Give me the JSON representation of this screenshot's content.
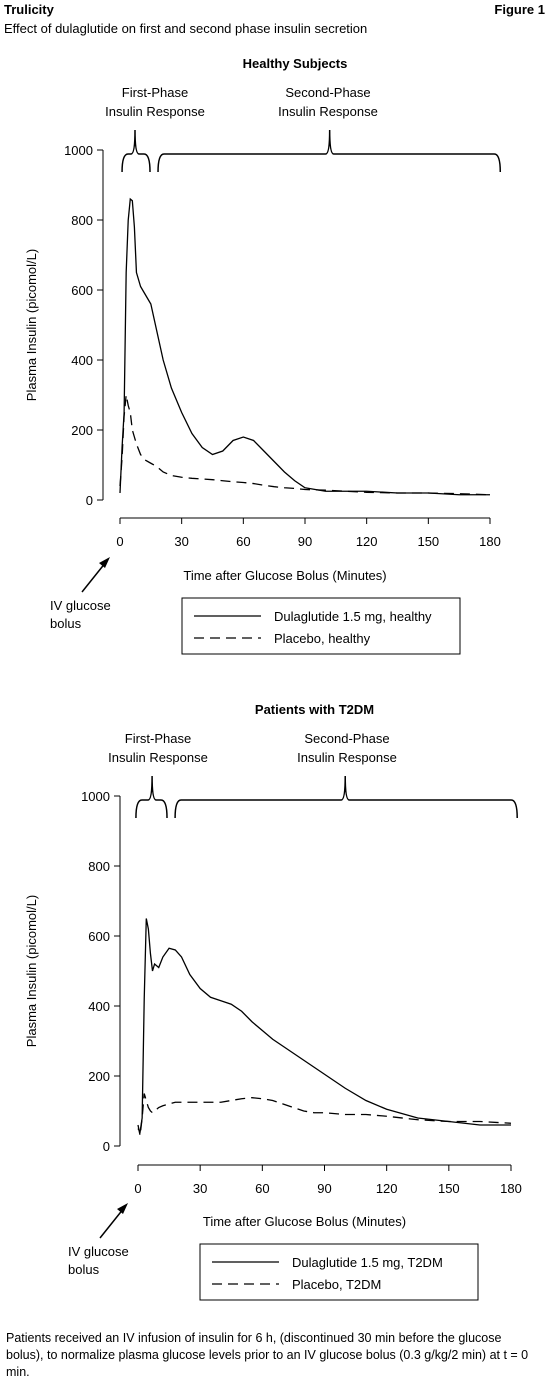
{
  "header": {
    "product": "Trulicity",
    "figure": "Figure 1",
    "subtitle": "Effect of dulaglutide on first and second phase insulin secretion"
  },
  "chart_data": [
    {
      "type": "line",
      "title": "Healthy Subjects",
      "phase_labels": [
        [
          "First-Phase",
          "Insulin Response"
        ],
        [
          "Second-Phase",
          "Insulin Response"
        ]
      ],
      "xlabel": "Time after Glucose Bolus (Minutes)",
      "ylabel": "Plasma Insulin (picomol/L)",
      "arrow_label": [
        "IV glucose",
        "bolus"
      ],
      "x": [
        0,
        1,
        2,
        3,
        4,
        5,
        6,
        7,
        8,
        10,
        12,
        15,
        18,
        21,
        25,
        30,
        35,
        40,
        45,
        50,
        55,
        60,
        65,
        70,
        75,
        80,
        85,
        90,
        100,
        110,
        120,
        135,
        150,
        165,
        180
      ],
      "series": [
        {
          "name": "Dulaglutide 1.5 mg, healthy",
          "color": "#000000",
          "linestyle": "solid",
          "values": [
            20,
            150,
            250,
            650,
            800,
            860,
            855,
            780,
            650,
            610,
            590,
            560,
            480,
            400,
            320,
            250,
            190,
            150,
            130,
            140,
            170,
            180,
            170,
            140,
            110,
            80,
            55,
            35,
            25,
            25,
            25,
            20,
            20,
            15,
            15
          ]
        },
        {
          "name": "Placebo, healthy",
          "color": "#000000",
          "linestyle": "dashed",
          "values": [
            40,
            120,
            240,
            300,
            270,
            250,
            200,
            180,
            160,
            130,
            115,
            105,
            95,
            80,
            70,
            65,
            62,
            60,
            58,
            55,
            52,
            50,
            47,
            42,
            38,
            35,
            33,
            30,
            28,
            25,
            22,
            20,
            20,
            18,
            15
          ]
        }
      ],
      "xlim": [
        0,
        180
      ],
      "ylim": [
        0,
        1000
      ],
      "xticks": [
        0,
        30,
        60,
        90,
        120,
        150,
        180
      ],
      "yticks": [
        0,
        200,
        400,
        600,
        800,
        1000
      ]
    },
    {
      "type": "line",
      "title": "Patients with T2DM",
      "phase_labels": [
        [
          "First-Phase",
          "Insulin Response"
        ],
        [
          "Second-Phase",
          "Insulin Response"
        ]
      ],
      "xlabel": "Time after Glucose Bolus (Minutes)",
      "ylabel": "Plasma Insulin (picomol/L)",
      "arrow_label": [
        "IV glucose",
        "bolus"
      ],
      "x": [
        0,
        1,
        2,
        3,
        4,
        5,
        6,
        7,
        8,
        10,
        12,
        15,
        18,
        21,
        25,
        30,
        35,
        40,
        45,
        50,
        55,
        60,
        65,
        70,
        75,
        80,
        85,
        90,
        100,
        110,
        120,
        135,
        150,
        165,
        180
      ],
      "series": [
        {
          "name": "Dulaglutide 1.5 mg, T2DM",
          "color": "#000000",
          "linestyle": "solid",
          "values": [
            50,
            40,
            80,
            420,
            650,
            620,
            550,
            500,
            520,
            510,
            540,
            565,
            560,
            540,
            490,
            450,
            425,
            415,
            405,
            385,
            355,
            330,
            305,
            285,
            265,
            245,
            225,
            205,
            165,
            130,
            105,
            80,
            70,
            60,
            60
          ]
        },
        {
          "name": "Placebo, T2DM",
          "color": "#000000",
          "linestyle": "dashed",
          "values": [
            60,
            30,
            80,
            150,
            130,
            110,
            100,
            95,
            100,
            110,
            115,
            120,
            125,
            125,
            125,
            125,
            125,
            125,
            130,
            135,
            138,
            135,
            130,
            120,
            110,
            100,
            95,
            95,
            90,
            90,
            85,
            75,
            70,
            70,
            65
          ]
        }
      ],
      "xlim": [
        0,
        180
      ],
      "ylim": [
        0,
        1000
      ],
      "xticks": [
        0,
        30,
        60,
        90,
        120,
        150,
        180
      ],
      "yticks": [
        0,
        200,
        400,
        600,
        800,
        1000
      ]
    }
  ],
  "footnote": "Patients received an IV infusion of insulin for 6 h, (discontinued 30 min before the glucose bolus), to normalize plasma glucose levels prior to an IV glucose bolus (0.3 g/kg/2 min) at t = 0 min."
}
